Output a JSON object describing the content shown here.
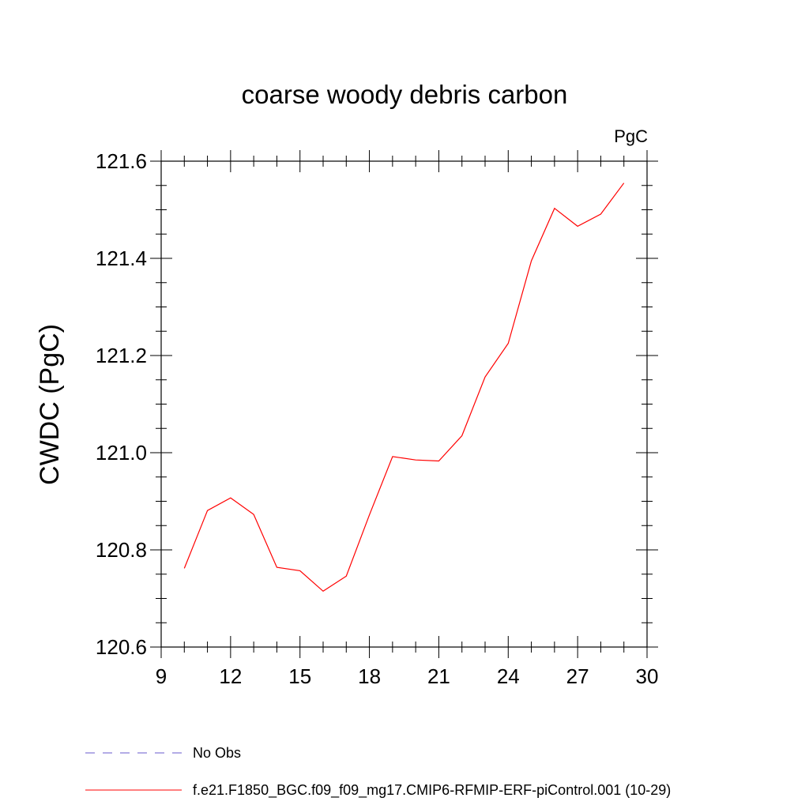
{
  "chart_data": {
    "type": "line",
    "title": "coarse woody debris carbon",
    "units_label": "PgC",
    "ylabel": "CWDC  (PgC)",
    "xlabel": "",
    "xlim": [
      9,
      30
    ],
    "ylim": [
      120.6,
      121.6
    ],
    "x_ticks": [
      9,
      12,
      15,
      18,
      21,
      24,
      27,
      30
    ],
    "y_ticks": [
      120.6,
      120.8,
      121.0,
      121.2,
      121.4,
      121.6
    ],
    "x_tick_labels": [
      "9",
      "12",
      "15",
      "18",
      "21",
      "24",
      "27",
      "30"
    ],
    "y_tick_labels": [
      "120.6",
      "120.8",
      "121.0",
      "121.2",
      "121.4",
      "121.6"
    ],
    "grid": false,
    "legend_position": "bottom",
    "series": [
      {
        "name": "f.e21.F1850_BGC.f09_f09_mg17.CMIP6-RFMIP-ERF-piControl.001 (10-29)",
        "color": "#ff0000",
        "style": "solid",
        "x": [
          10,
          11,
          12,
          13,
          14,
          15,
          16,
          17,
          18,
          19,
          20,
          21,
          22,
          23,
          24,
          25,
          26,
          27,
          28,
          29
        ],
        "y": [
          120.762,
          120.881,
          120.907,
          120.873,
          120.764,
          120.757,
          120.715,
          120.746,
          120.872,
          120.992,
          120.985,
          120.983,
          121.035,
          121.156,
          121.225,
          121.395,
          121.503,
          121.466,
          121.491,
          121.555
        ]
      },
      {
        "name": "No Obs",
        "color": "#6a5acd",
        "style": "dashed",
        "x": [],
        "y": []
      }
    ]
  }
}
